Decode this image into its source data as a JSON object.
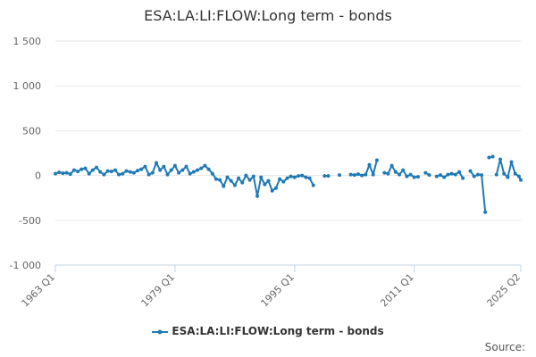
{
  "title": "ESA:LA:LI:FLOW:Long term - bonds",
  "source_label": "Source:",
  "colors": {
    "series": "#1f7ab5",
    "grid": "#e6e6e6",
    "axis": "#c0d0e0",
    "text": "#666666"
  },
  "chart_data": {
    "type": "line",
    "title": "ESA:LA:LI:FLOW:Long term - bonds",
    "xlabel": "",
    "ylabel": "",
    "x_ticks": [
      "1963 Q1",
      "1979 Q1",
      "1995 Q1",
      "2011 Q1",
      "2025 Q2"
    ],
    "y_ticks": [
      "1 500",
      "1 000",
      "500",
      "0",
      "-500",
      "-1 000"
    ],
    "ylim": [
      -1000,
      1500
    ],
    "xlim": [
      1963.0,
      2025.25
    ],
    "grid": true,
    "legend_position": "bottom",
    "series": [
      {
        "name": "ESA:LA:LI:FLOW:Long term - bonds",
        "color": "#1f7ab5",
        "segments": [
          [
            [
              1963.0,
              20
            ],
            [
              1963.5,
              35
            ],
            [
              1964.0,
              25
            ],
            [
              1964.5,
              30
            ],
            [
              1965.0,
              15
            ],
            [
              1965.5,
              60
            ],
            [
              1966.0,
              45
            ],
            [
              1966.5,
              70
            ],
            [
              1967.0,
              80
            ],
            [
              1967.5,
              20
            ],
            [
              1968.0,
              60
            ],
            [
              1968.5,
              90
            ],
            [
              1969.0,
              40
            ],
            [
              1969.5,
              10
            ],
            [
              1970.0,
              50
            ],
            [
              1970.5,
              45
            ],
            [
              1971.0,
              60
            ],
            [
              1971.5,
              10
            ],
            [
              1972.0,
              20
            ],
            [
              1972.5,
              50
            ],
            [
              1973.0,
              40
            ],
            [
              1973.5,
              30
            ],
            [
              1974.0,
              55
            ],
            [
              1974.5,
              70
            ],
            [
              1975.0,
              100
            ],
            [
              1975.5,
              10
            ],
            [
              1976.0,
              30
            ],
            [
              1976.5,
              140
            ],
            [
              1977.0,
              60
            ],
            [
              1977.5,
              100
            ],
            [
              1978.0,
              10
            ],
            [
              1978.5,
              60
            ],
            [
              1979.0,
              110
            ],
            [
              1979.5,
              30
            ],
            [
              1980.0,
              60
            ],
            [
              1980.5,
              100
            ],
            [
              1981.0,
              20
            ],
            [
              1981.5,
              40
            ],
            [
              1982.0,
              60
            ],
            [
              1982.5,
              80
            ],
            [
              1983.0,
              110
            ],
            [
              1983.5,
              70
            ],
            [
              1984.0,
              20
            ],
            [
              1984.5,
              -40
            ],
            [
              1985.0,
              -50
            ],
            [
              1985.5,
              -120
            ],
            [
              1986.0,
              -20
            ],
            [
              1986.5,
              -60
            ],
            [
              1987.0,
              -110
            ],
            [
              1987.5,
              -30
            ],
            [
              1988.0,
              -80
            ],
            [
              1988.5,
              0
            ],
            [
              1989.0,
              -50
            ],
            [
              1989.5,
              -10
            ],
            [
              1990.0,
              -230
            ],
            [
              1990.5,
              -20
            ],
            [
              1991.0,
              -100
            ],
            [
              1991.5,
              -60
            ],
            [
              1992.0,
              -170
            ],
            [
              1992.5,
              -140
            ],
            [
              1993.0,
              -40
            ],
            [
              1993.5,
              -70
            ],
            [
              1994.0,
              -30
            ],
            [
              1994.5,
              -10
            ],
            [
              1995.0,
              -20
            ],
            [
              1995.5,
              -5
            ],
            [
              1996.0,
              0
            ],
            [
              1996.5,
              -20
            ],
            [
              1997.0,
              -30
            ],
            [
              1997.5,
              -110
            ]
          ],
          [
            [
              1999.0,
              -5
            ],
            [
              1999.5,
              -5
            ]
          ],
          [
            [
              2001.0,
              5
            ]
          ],
          [
            [
              2002.5,
              10
            ],
            [
              2003.0,
              5
            ],
            [
              2003.5,
              15
            ],
            [
              2004.0,
              0
            ],
            [
              2004.5,
              10
            ],
            [
              2005.0,
              120
            ],
            [
              2005.5,
              10
            ],
            [
              2006.0,
              170
            ]
          ],
          [
            [
              2007.0,
              30
            ],
            [
              2007.5,
              20
            ],
            [
              2008.0,
              110
            ],
            [
              2008.5,
              40
            ],
            [
              2009.0,
              10
            ],
            [
              2009.5,
              60
            ],
            [
              2010.0,
              -10
            ],
            [
              2010.5,
              10
            ],
            [
              2011.0,
              -20
            ],
            [
              2011.5,
              -15
            ]
          ],
          [
            [
              2012.5,
              30
            ],
            [
              2013.0,
              5
            ]
          ],
          [
            [
              2014.0,
              -10
            ],
            [
              2014.5,
              5
            ],
            [
              2015.0,
              -20
            ],
            [
              2015.5,
              10
            ],
            [
              2016.0,
              20
            ],
            [
              2016.5,
              10
            ],
            [
              2017.0,
              40
            ],
            [
              2017.5,
              -30
            ]
          ],
          [
            [
              2018.5,
              50
            ],
            [
              2019.0,
              -10
            ],
            [
              2019.5,
              10
            ],
            [
              2020.0,
              5
            ],
            [
              2020.5,
              -410
            ]
          ],
          [
            [
              2021.0,
              200
            ],
            [
              2021.5,
              210
            ]
          ],
          [
            [
              2022.0,
              10
            ],
            [
              2022.5,
              180
            ],
            [
              2023.0,
              20
            ],
            [
              2023.5,
              -20
            ],
            [
              2024.0,
              150
            ],
            [
              2024.5,
              20
            ],
            [
              2025.0,
              -10
            ],
            [
              2025.25,
              -50
            ]
          ]
        ]
      }
    ]
  }
}
